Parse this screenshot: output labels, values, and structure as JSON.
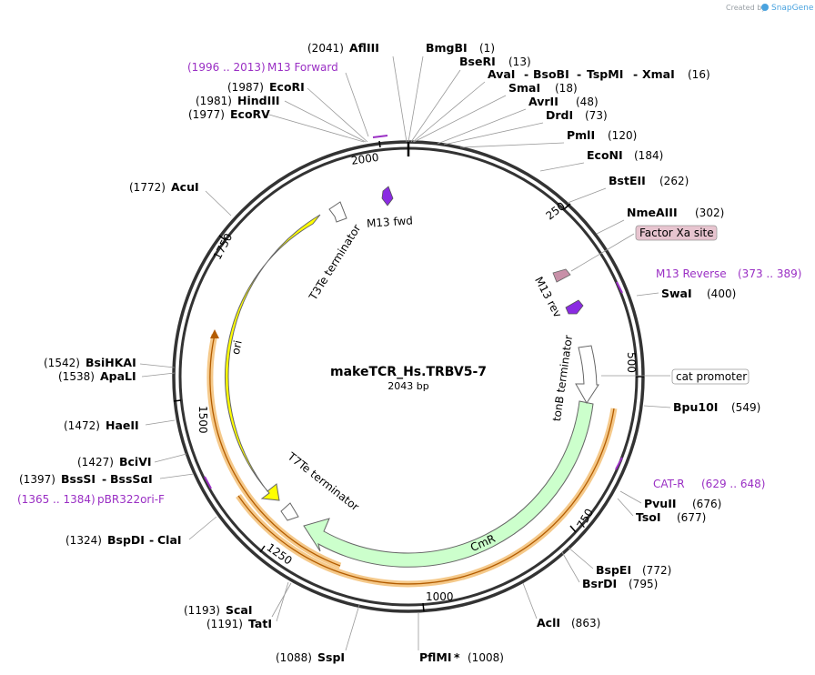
{
  "credit": {
    "created_by": "Created by",
    "brand": "SnapGene"
  },
  "plasmid": {
    "name": "makeTCR_Hs.TRBV5-7",
    "size": "2043 bp"
  },
  "ticks": [
    "250",
    "500",
    "750",
    "1000",
    "1250",
    "1500",
    "1750",
    "2000"
  ],
  "sites_left": [
    {
      "pos": "(2041)",
      "name": "AflIII"
    },
    {
      "pos": "(1987)",
      "name": "EcoRI"
    },
    {
      "pos": "(1981)",
      "name": "HindIII"
    },
    {
      "pos": "(1977)",
      "name": "EcoRV"
    },
    {
      "pos": "(1772)",
      "name": "AcuI"
    },
    {
      "pos": "(1542)",
      "name": "BsiHKAI"
    },
    {
      "pos": "(1538)",
      "name": "ApaLI"
    },
    {
      "pos": "(1472)",
      "name": "HaeII"
    },
    {
      "pos": "(1427)",
      "name": "BciVI"
    },
    {
      "pos": "(1397)",
      "name": "BssSI",
      "name2": "BssSαI"
    },
    {
      "pos": "(1324)",
      "name": "BspDI",
      "name2": "ClaI"
    },
    {
      "pos": "(1193)",
      "name": "ScaI"
    },
    {
      "pos": "(1191)",
      "name": "TatI"
    },
    {
      "pos": "(1088)",
      "name": "SspI"
    }
  ],
  "sites_right": [
    {
      "name": "BmgBI",
      "pos": "(1)"
    },
    {
      "name": "BseRI",
      "pos": "(13)"
    },
    {
      "name": "AvaI",
      "name2": "BsoBI",
      "name3": "TspMI",
      "name4": "XmaI",
      "pos": "(16)"
    },
    {
      "name": "SmaI",
      "pos": "(18)"
    },
    {
      "name": "AvrII",
      "pos": "(48)"
    },
    {
      "name": "DrdI",
      "pos": "(73)"
    },
    {
      "name": "PmlI",
      "pos": "(120)"
    },
    {
      "name": "EcoNI",
      "pos": "(184)"
    },
    {
      "name": "BstEII",
      "pos": "(262)"
    },
    {
      "name": "NmeAIII",
      "pos": "(302)"
    },
    {
      "name": "SwaI",
      "pos": "(400)"
    },
    {
      "name": "Bpu10I",
      "pos": "(549)"
    },
    {
      "name": "PvuII",
      "pos": "(676)"
    },
    {
      "name": "TsoI",
      "pos": "(677)"
    },
    {
      "name": "BspEI",
      "pos": "(772)"
    },
    {
      "name": "BsrDI",
      "pos": "(795)"
    },
    {
      "name": "AclI",
      "pos": "(863)"
    },
    {
      "name": "PflMI",
      "star": "*",
      "pos": "(1008)"
    }
  ],
  "primers": [
    {
      "range": "(1996 .. 2013)",
      "name": "M13 Forward"
    },
    {
      "name": "M13 Reverse",
      "range": "(373 .. 389)"
    },
    {
      "name": "CAT-R",
      "range": "(629 .. 648)"
    },
    {
      "range": "(1365 .. 1384)",
      "name": "pBR322ori-F"
    }
  ],
  "boxed": {
    "factor_xa": "Factor Xa site",
    "cat_promoter": "cat promoter"
  },
  "features": {
    "t3te": "T3Te terminator",
    "ori": "ori",
    "t7te": "T7Te terminator",
    "cmr": "CmR",
    "tonb": "tonB terminator",
    "m13fwd": "M13 fwd",
    "m13rev": "M13 rev"
  },
  "colors": {
    "backbone": "#333333",
    "ori": "#ffff00",
    "cmr": "#ccffcc",
    "primer": "#9a2fc4",
    "feature_purple": "#8a2be2",
    "factor_xa": "#e7c4cf",
    "orange_track": "#f5c98a",
    "orange_line": "#b35c00"
  }
}
